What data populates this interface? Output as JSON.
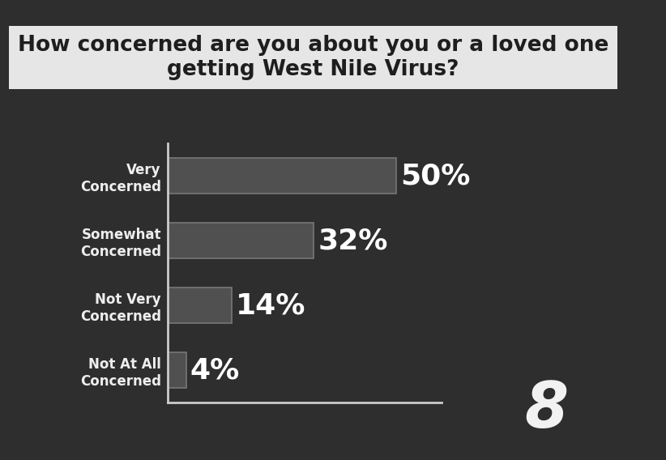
{
  "chart_data": {
    "type": "bar",
    "orientation": "horizontal",
    "title": "How concerned are you about you or a loved one getting West Nile Virus?",
    "categories": [
      "Very\nConcerned",
      "Somewhat\nConcerned",
      "Not Very\nConcerned",
      "Not At All\nConcerned"
    ],
    "values": [
      50,
      32,
      14,
      4
    ],
    "value_labels": [
      "50%",
      "32%",
      "14%",
      "4%"
    ],
    "data_labels": true,
    "color": "#505050",
    "xlim": [
      0,
      60
    ],
    "xticks": [],
    "tick_labels": "y",
    "grid": false,
    "annotations": [
      "8"
    ]
  }
}
